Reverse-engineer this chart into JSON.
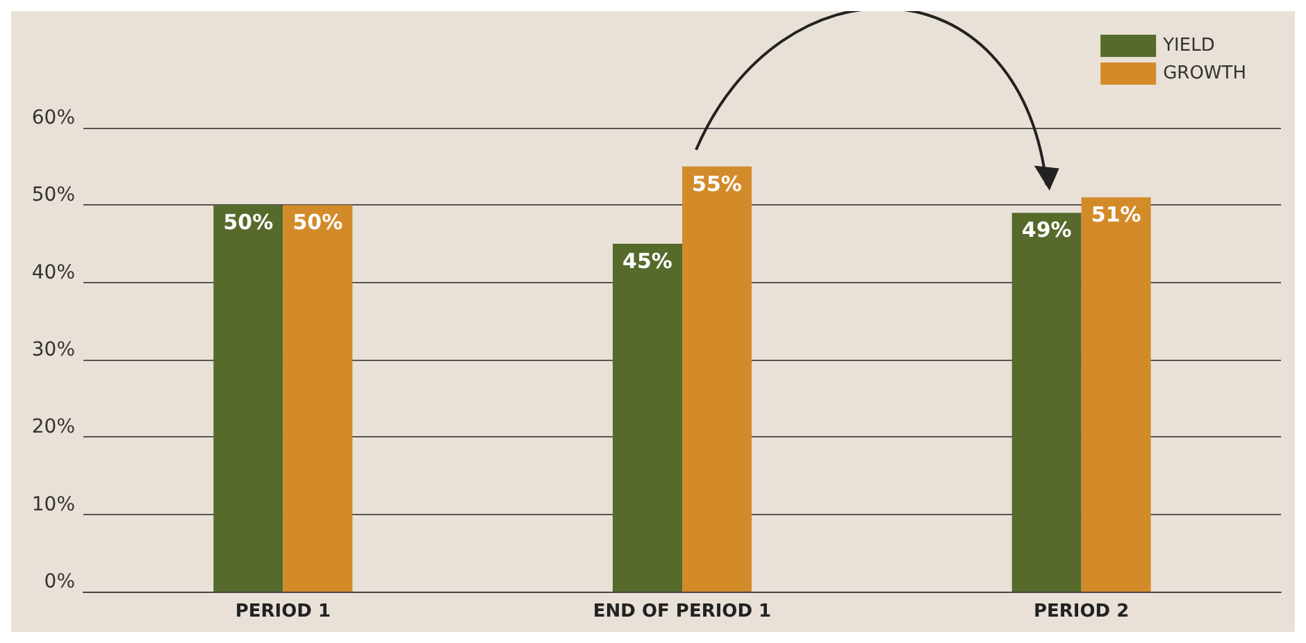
{
  "chart_data": {
    "type": "bar",
    "categories": [
      "PERIOD 1",
      "END OF PERIOD 1",
      "PERIOD 2"
    ],
    "series": [
      {
        "name": "YIELD",
        "color": "#566a2b",
        "values": [
          50,
          45,
          49
        ]
      },
      {
        "name": "GROWTH",
        "color": "#d38b2a",
        "values": [
          50,
          55,
          51
        ]
      }
    ],
    "ylim": [
      0,
      60
    ],
    "yticks": [
      {
        "value": 0,
        "label": "0%"
      },
      {
        "value": 10,
        "label": "10%"
      },
      {
        "value": 20,
        "label": "20%"
      },
      {
        "value": 30,
        "label": "30%"
      },
      {
        "value": 40,
        "label": "40%"
      },
      {
        "value": 50,
        "label": "50%"
      },
      {
        "value": 60,
        "label": "60%"
      }
    ],
    "value_labels": [
      [
        "50%",
        "45%",
        "49%"
      ],
      [
        "50%",
        "55%",
        "51%"
      ]
    ],
    "grid": "y",
    "legend": "top right"
  }
}
